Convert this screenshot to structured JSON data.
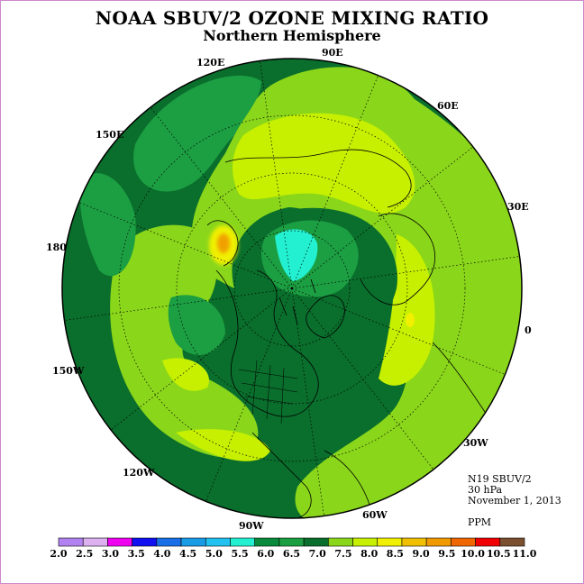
{
  "header": {
    "title": "NOAA SBUV/2 OZONE MIXING RATIO",
    "subtitle": "Northern Hemisphere"
  },
  "meridian_labels": [
    "90E",
    "60E",
    "30E",
    "0",
    "30W",
    "60W",
    "90W",
    "120W",
    "150W",
    "180",
    "150E",
    "120E"
  ],
  "info": {
    "instrument": "N19 SBUV/2",
    "level": "30 hPa",
    "date": "November 1, 2013",
    "units": "PPM"
  },
  "colorbar": {
    "ticks": [
      "2.0",
      "2.5",
      "3.0",
      "3.5",
      "4.0",
      "4.5",
      "5.0",
      "5.5",
      "6.0",
      "6.5",
      "7.0",
      "7.5",
      "8.0",
      "8.5",
      "9.0",
      "9.5",
      "10.0",
      "10.5",
      "11.0"
    ],
    "colors": [
      "#b283f0",
      "#ddb0f0",
      "#f000f0",
      "#1010f0",
      "#1a6fe6",
      "#1a9be6",
      "#22c2f0",
      "#22f0d0",
      "#0a8a3a",
      "#1c9e42",
      "#0a6e2c",
      "#8ad61a",
      "#c6f000",
      "#f0f000",
      "#f0c000",
      "#f09a00",
      "#f06600",
      "#f00000",
      "#7a5030"
    ]
  },
  "colors": {
    "frame": "#cc88cc",
    "coast": "#000000",
    "grid": "#000000"
  }
}
